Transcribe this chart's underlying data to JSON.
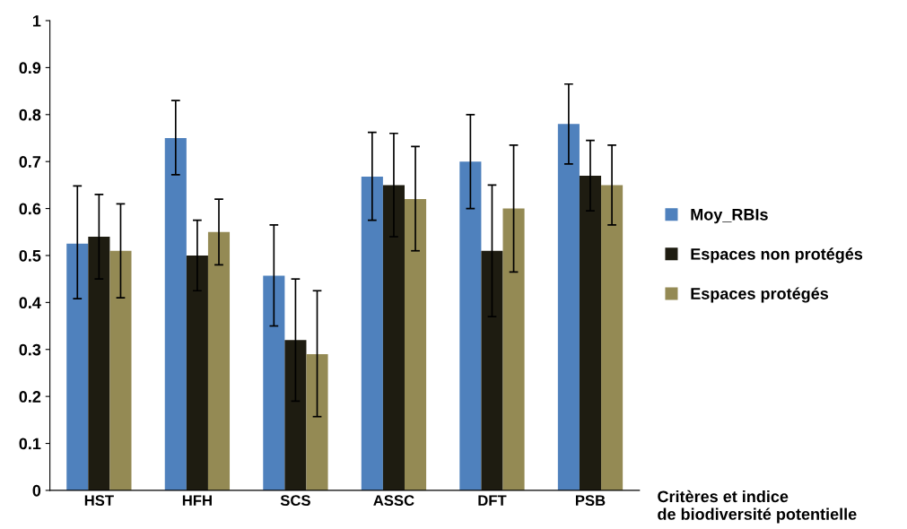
{
  "chart_data": {
    "type": "bar",
    "xlabel": "Critères et indice\nde biodiversité potentielle",
    "categories": [
      "HST",
      "HFH",
      "SCS",
      "ASSC",
      "DFT",
      "PSB"
    ],
    "series": [
      {
        "name": "Moy_RBIs",
        "color": "#4f81bd",
        "values": [
          0.525,
          0.75,
          0.457,
          0.668,
          0.7,
          0.78
        ],
        "errors": [
          [
            0.408,
            0.648
          ],
          [
            0.672,
            0.83
          ],
          [
            0.35,
            0.565
          ],
          [
            0.575,
            0.762
          ],
          [
            0.6,
            0.8
          ],
          [
            0.695,
            0.865
          ]
        ]
      },
      {
        "name": "Espaces non protégés",
        "color": "#1e1c11",
        "values": [
          0.54,
          0.5,
          0.32,
          0.65,
          0.51,
          0.67
        ],
        "errors": [
          [
            0.45,
            0.63
          ],
          [
            0.425,
            0.575
          ],
          [
            0.19,
            0.45
          ],
          [
            0.54,
            0.76
          ],
          [
            0.37,
            0.65
          ],
          [
            0.595,
            0.745
          ]
        ]
      },
      {
        "name": "Espaces protégés",
        "color": "#948a54",
        "values": [
          0.51,
          0.55,
          0.29,
          0.62,
          0.6,
          0.65
        ],
        "errors": [
          [
            0.41,
            0.61
          ],
          [
            0.48,
            0.62
          ],
          [
            0.157,
            0.425
          ],
          [
            0.51,
            0.732
          ],
          [
            0.465,
            0.735
          ],
          [
            0.565,
            0.735
          ]
        ]
      }
    ],
    "ylim": [
      0,
      1
    ],
    "yticks": [
      0,
      {
        "value": 0.1,
        "label": "0.1"
      },
      {
        "value": 0.2,
        "label": "0.2"
      },
      {
        "value": 0.3,
        "label": "0.3"
      },
      {
        "value": 0.4,
        "label": "0.4"
      },
      {
        "value": 0.5,
        "label": "0.5"
      },
      {
        "value": 0.6,
        "label": "0.6"
      },
      {
        "value": 0.7,
        "label": "0.7"
      },
      {
        "value": 0.8,
        "label": "0.8"
      },
      {
        "value": 0.9,
        "label": "0.9"
      },
      1
    ],
    "legend": "right",
    "grid": false
  }
}
